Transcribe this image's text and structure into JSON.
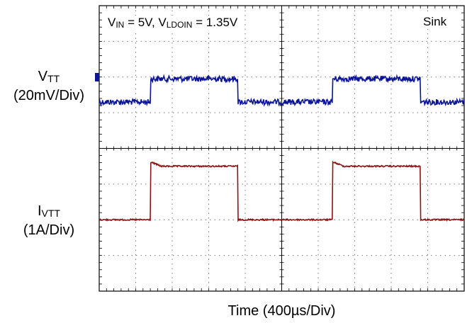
{
  "chart_data": {
    "type": "line",
    "subtype": "oscilloscope-capture",
    "x": {
      "label": "Time (400µs/Div)",
      "units": "µs",
      "per_division": 400,
      "divisions": 10,
      "range": [
        0,
        4000
      ]
    },
    "conditions": {
      "text_main_1": "V",
      "text_sub_1": "IN",
      "text_main_2": " = 5V, V",
      "text_sub_2": "LDOIN",
      "text_main_3": " = 1.35V"
    },
    "mode": "Sink",
    "grid": true,
    "grid_divisions": {
      "x": 10,
      "y": 8
    },
    "series": [
      {
        "id": "vtt",
        "name_main": "V",
        "name_sub": "TT",
        "scale": "(20mV/Div)",
        "color": "#0b1596",
        "noise_div": 0.08,
        "baseline_div": 2.7,
        "segments": [
          {
            "t0": 0,
            "t1": 280,
            "level_div": 0
          },
          {
            "t0": 280,
            "t1": 760,
            "level_div": 0.65
          },
          {
            "t0": 760,
            "t1": 1280,
            "level_div": 0
          },
          {
            "t0": 1280,
            "t1": 1760,
            "level_div": 0.65
          },
          {
            "t0": 1760,
            "t1": 2000,
            "level_div": 0
          }
        ]
      },
      {
        "id": "ivtt",
        "name_main": "I",
        "name_sub": "VTT",
        "scale": "(1A/Div)",
        "color": "#8b1414",
        "noise_div": 0.02,
        "baseline_div": 6.0,
        "segments": [
          {
            "t0": 0,
            "t1": 280,
            "level_div": 0
          },
          {
            "t0": 280,
            "t1": 760,
            "level_div": 1.5
          },
          {
            "t0": 760,
            "t1": 1280,
            "level_div": 0
          },
          {
            "t0": 1280,
            "t1": 1760,
            "level_div": 1.5
          },
          {
            "t0": 1760,
            "t1": 2000,
            "level_div": 0
          }
        ]
      }
    ]
  }
}
